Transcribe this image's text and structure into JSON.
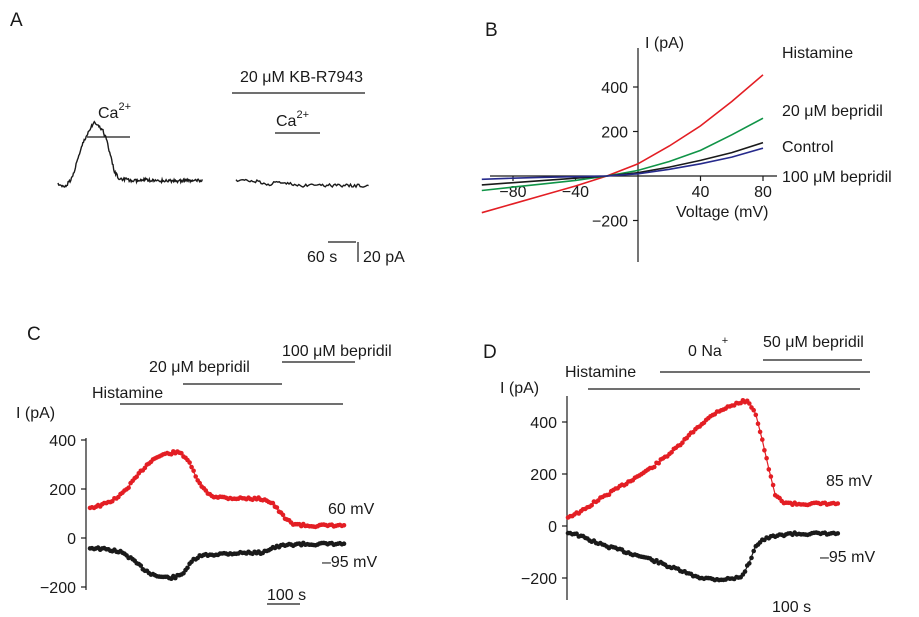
{
  "colors": {
    "red": "#e31e24",
    "green": "#109447",
    "black": "#1a1a1a",
    "blue": "#262a8c"
  },
  "chart_data": [
    {
      "type": "line",
      "panel": "A",
      "annotations": {
        "ca_left": "Ca",
        "ca_right": "Ca",
        "superscript": "2+",
        "drug": "20 μM KB-R7943",
        "scale_time": "60 s",
        "scale_current": "20 pA"
      },
      "series": [
        {
          "color": "black",
          "x": [
            0,
            10,
            20,
            30,
            40,
            50,
            60,
            70,
            80,
            90,
            100,
            110,
            120,
            130,
            140,
            150,
            160,
            170,
            180,
            190,
            200,
            210,
            220,
            230,
            240,
            250,
            260,
            270,
            280,
            290,
            300,
            310,
            320,
            330,
            340,
            350,
            360
          ],
          "values": [
            0,
            -2,
            -1,
            2,
            8,
            16,
            24,
            30,
            35,
            38,
            36,
            34,
            28,
            18,
            8,
            4,
            3,
            3,
            2,
            2,
            2,
            2,
            3,
            2,
            2,
            2,
            2,
            2,
            2,
            2,
            2,
            2,
            2,
            2,
            2,
            2,
            2
          ]
        },
        {
          "color": "black",
          "x": [
            0,
            20,
            40,
            60,
            80,
            100,
            120,
            140,
            160,
            180,
            200,
            220,
            240,
            260,
            280,
            300,
            320
          ],
          "values": [
            2,
            2,
            2,
            1,
            0,
            1,
            0,
            0,
            -1,
            -1,
            -1,
            -1,
            -1,
            -1,
            -1,
            -1,
            -1
          ]
        }
      ]
    },
    {
      "type": "line",
      "panel": "B",
      "xlabel": "Voltage (mV)",
      "ylabel": "I (pA)",
      "xlim": [
        -105,
        85
      ],
      "ylim": [
        -210,
        520
      ],
      "xticks": [
        -80,
        -40,
        40,
        80
      ],
      "yticks": [
        -200,
        200,
        400
      ],
      "series": [
        {
          "name": "Histamine",
          "color": "red",
          "x": [
            -100,
            -80,
            -60,
            -40,
            -20,
            0,
            20,
            40,
            60,
            80
          ],
          "values": [
            -165,
            -125,
            -85,
            -45,
            0,
            55,
            135,
            225,
            335,
            455
          ]
        },
        {
          "name": "20 μM bepridil",
          "color": "green",
          "x": [
            -100,
            -80,
            -60,
            -40,
            -20,
            0,
            20,
            40,
            60,
            80
          ],
          "values": [
            -65,
            -50,
            -35,
            -20,
            0,
            25,
            65,
            115,
            185,
            260
          ]
        },
        {
          "name": "Control",
          "color": "black",
          "x": [
            -100,
            -80,
            -60,
            -40,
            -20,
            0,
            20,
            40,
            60,
            80
          ],
          "values": [
            -40,
            -30,
            -20,
            -10,
            0,
            15,
            40,
            70,
            105,
            150
          ]
        },
        {
          "name": "100 μM bepridil",
          "color": "blue",
          "x": [
            -100,
            -80,
            -60,
            -40,
            -20,
            0,
            20,
            40,
            60,
            80
          ],
          "values": [
            -15,
            -10,
            -6,
            -3,
            0,
            10,
            30,
            55,
            85,
            125
          ]
        }
      ]
    },
    {
      "type": "scatter",
      "panel": "C",
      "ylabel": "I (pA)",
      "ylim": [
        -220,
        420
      ],
      "yticks": [
        -200,
        0,
        200,
        400
      ],
      "annotations": {
        "histamine": "Histamine",
        "bep20": "20 μM bepridil",
        "bep100": "100 μM bepridil",
        "scale_time": "100 s"
      },
      "series": [
        {
          "name": "60 mV",
          "color": "red",
          "x": [
            0,
            10,
            20,
            30,
            40,
            50,
            60,
            70,
            80,
            90,
            100,
            110,
            120,
            130,
            140,
            150,
            160,
            170,
            180,
            190,
            200,
            210,
            220,
            230,
            240,
            250,
            260,
            270,
            280,
            290,
            300,
            310,
            320,
            330,
            340,
            350,
            360,
            370,
            380,
            390,
            400,
            410,
            420
          ],
          "values": [
            125,
            128,
            135,
            145,
            158,
            175,
            200,
            230,
            260,
            290,
            315,
            330,
            340,
            345,
            350,
            345,
            320,
            270,
            220,
            190,
            172,
            168,
            165,
            163,
            162,
            162,
            161,
            160,
            160,
            155,
            140,
            110,
            80,
            62,
            55,
            52,
            50,
            50,
            50,
            50,
            50,
            50,
            50
          ]
        },
        {
          "name": "–95 mV",
          "color": "black",
          "x": [
            0,
            10,
            20,
            30,
            40,
            50,
            60,
            70,
            80,
            90,
            100,
            110,
            120,
            130,
            140,
            150,
            160,
            170,
            180,
            190,
            200,
            210,
            220,
            230,
            240,
            250,
            260,
            270,
            280,
            290,
            300,
            310,
            320,
            330,
            340,
            350,
            360,
            370,
            380,
            390,
            400,
            410,
            420
          ],
          "values": [
            -40,
            -42,
            -45,
            -48,
            -52,
            -58,
            -70,
            -90,
            -110,
            -130,
            -145,
            -155,
            -160,
            -162,
            -160,
            -150,
            -120,
            -90,
            -75,
            -70,
            -68,
            -66,
            -64,
            -63,
            -62,
            -61,
            -60,
            -60,
            -60,
            -50,
            -40,
            -35,
            -30,
            -28,
            -25,
            -25,
            -25,
            -25,
            -25,
            -25,
            -25,
            -25,
            -25
          ]
        }
      ]
    },
    {
      "type": "scatter",
      "panel": "D",
      "ylabel": "I (pA)",
      "ylim": [
        -260,
        520
      ],
      "yticks": [
        -200,
        0,
        200,
        400
      ],
      "annotations": {
        "histamine": "Histamine",
        "na": "0 Na",
        "na_sup": "+",
        "bep50": "50 μM bepridil",
        "scale_time": "100 s"
      },
      "series": [
        {
          "name": "85 mV",
          "color": "red",
          "x": [
            0,
            10,
            20,
            30,
            40,
            50,
            60,
            70,
            80,
            90,
            100,
            110,
            120,
            130,
            140,
            150,
            160,
            170,
            180,
            190,
            200,
            210,
            220,
            230,
            240,
            250,
            260,
            270,
            280,
            290,
            300,
            310,
            320,
            330,
            340,
            350,
            360,
            370,
            380,
            390,
            400,
            410,
            420
          ],
          "values": [
            35,
            45,
            55,
            70,
            90,
            105,
            120,
            135,
            150,
            165,
            180,
            195,
            210,
            225,
            245,
            265,
            285,
            305,
            330,
            355,
            380,
            400,
            420,
            440,
            450,
            460,
            470,
            480,
            475,
            430,
            330,
            220,
            120,
            95,
            88,
            85,
            85,
            85,
            85,
            85,
            85,
            85,
            85
          ]
        },
        {
          "name": "–95 mV",
          "color": "black",
          "x": [
            0,
            10,
            20,
            30,
            40,
            50,
            60,
            70,
            80,
            90,
            100,
            110,
            120,
            130,
            140,
            150,
            160,
            170,
            180,
            190,
            200,
            210,
            220,
            230,
            240,
            250,
            260,
            270,
            280,
            290,
            300,
            310,
            320,
            330,
            340,
            350,
            360,
            370,
            380,
            390,
            400,
            410,
            420
          ],
          "values": [
            -25,
            -30,
            -40,
            -50,
            -60,
            -70,
            -78,
            -85,
            -92,
            -100,
            -108,
            -115,
            -122,
            -130,
            -140,
            -150,
            -160,
            -168,
            -178,
            -188,
            -195,
            -200,
            -203,
            -205,
            -205,
            -203,
            -200,
            -190,
            -140,
            -75,
            -55,
            -45,
            -40,
            -35,
            -30,
            -30,
            -30,
            -30,
            -30,
            -30,
            -30,
            -30,
            -30
          ]
        }
      ]
    }
  ],
  "panels": {
    "A": "A",
    "B": "B",
    "C": "C",
    "D": "D"
  }
}
